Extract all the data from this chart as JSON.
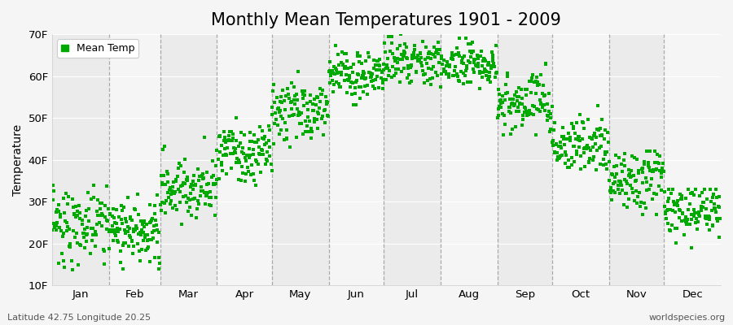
{
  "title": "Monthly Mean Temperatures 1901 - 2009",
  "ylabel": "Temperature",
  "bottom_left": "Latitude 42.75 Longitude 20.25",
  "bottom_right": "worldspecies.org",
  "legend_label": "Mean Temp",
  "ylim": [
    10,
    70
  ],
  "yticks": [
    10,
    20,
    30,
    40,
    50,
    60,
    70
  ],
  "ytick_labels": [
    "10F",
    "20F",
    "30F",
    "40F",
    "50F",
    "60F",
    "70F"
  ],
  "months": [
    "Jan",
    "Feb",
    "Mar",
    "Apr",
    "May",
    "Jun",
    "Jul",
    "Aug",
    "Sep",
    "Oct",
    "Nov",
    "Dec"
  ],
  "month_days": [
    31,
    28,
    31,
    30,
    31,
    30,
    31,
    31,
    30,
    31,
    30,
    31
  ],
  "marker_color": "#00AA00",
  "bg_color": "#F5F5F5",
  "band_colors": [
    "#EBEBEB",
    "#F5F5F5"
  ],
  "title_fontsize": 15,
  "monthly_means_F": [
    24.5,
    23.5,
    33.5,
    42.0,
    52.0,
    60.0,
    63.5,
    63.0,
    54.0,
    43.5,
    35.0,
    27.5
  ],
  "monthly_stds_F": [
    4.0,
    3.5,
    4.0,
    3.5,
    3.5,
    3.0,
    2.5,
    2.5,
    3.5,
    3.5,
    3.5,
    3.5
  ],
  "monthly_mins_F": [
    11,
    14,
    24,
    34,
    43,
    53,
    57,
    57,
    46,
    36,
    27,
    19
  ],
  "monthly_maxs_F": [
    34,
    32,
    46,
    50,
    61,
    68,
    70,
    69,
    63,
    53,
    42,
    33
  ],
  "n_years": 109
}
